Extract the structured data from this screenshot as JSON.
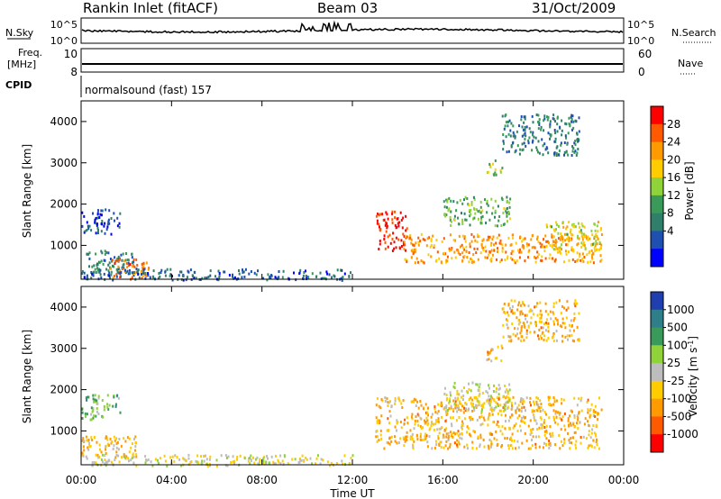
{
  "header": {
    "station": "Rankin Inlet (fitACF)",
    "beam": "Beam 03",
    "date": "31/Oct/2009"
  },
  "strips": {
    "nsky_label": "N.Sky",
    "nsky_ticks": [
      "10^5",
      "10^0"
    ],
    "nsearch_label": "N.Search",
    "nsearch_ticks": [
      "10^5",
      "10^0"
    ],
    "freq_label": "Freq.",
    "freq_unit": "[MHz]",
    "freq_ticks": [
      "10",
      "8"
    ],
    "nave_label": "Nave",
    "nave_ticks": [
      "60",
      "0"
    ],
    "cpid_label": "CPID",
    "cpid_value": "normalsound (fast) 157"
  },
  "chart_data": [
    {
      "type": "heatmap",
      "panel": "power",
      "quantity": "Power",
      "ylabel": "Slant Range [km]",
      "xlabel": "Time UT",
      "ylim": [
        180,
        4500
      ],
      "yticks": [
        "1000",
        "2000",
        "3000",
        "4000"
      ],
      "xlim": [
        "00:00",
        "24:00"
      ],
      "xticks": [
        "00:00",
        "04:00",
        "08:00",
        "12:00",
        "16:00",
        "20:00",
        "00:00"
      ],
      "colorbar": {
        "label": "Power [dB]",
        "ticks": [
          "28",
          "24",
          "20",
          "16",
          "12",
          "8",
          "4"
        ],
        "colors": [
          "#ff0000",
          "#ff5a00",
          "#ff9a00",
          "#ffcc00",
          "#8fd23a",
          "#3a9a5a",
          "#2f7f6a",
          "#1f4fb0",
          "#0000ff"
        ]
      },
      "echo_regions": [
        {
          "t0": 0.0,
          "t1": 1.7,
          "r0": 1300,
          "r1": 1900,
          "level_dB": 6
        },
        {
          "t0": 0.0,
          "t1": 2.5,
          "r0": 300,
          "r1": 900,
          "level_dB": 10
        },
        {
          "t0": 1.2,
          "t1": 3.0,
          "r0": 200,
          "r1": 700,
          "level_dB": 24
        },
        {
          "t0": 0.0,
          "t1": 12.0,
          "r0": 180,
          "r1": 450,
          "level_dB": 8
        },
        {
          "t0": 13.0,
          "t1": 14.4,
          "r0": 900,
          "r1": 1850,
          "level_dB": 28
        },
        {
          "t0": 14.2,
          "t1": 23.0,
          "r0": 600,
          "r1": 1300,
          "level_dB": 22
        },
        {
          "t0": 20.5,
          "t1": 23.0,
          "r0": 900,
          "r1": 1600,
          "level_dB": 18
        },
        {
          "t0": 16.0,
          "t1": 19.0,
          "r0": 1500,
          "r1": 2200,
          "level_dB": 14
        },
        {
          "t0": 17.9,
          "t1": 18.6,
          "r0": 2700,
          "r1": 3100,
          "level_dB": 16
        },
        {
          "t0": 18.6,
          "t1": 22.0,
          "r0": 3200,
          "r1": 4200,
          "level_dB": 10
        }
      ]
    },
    {
      "type": "heatmap",
      "panel": "velocity",
      "quantity": "Velocity",
      "ylabel": "Slant Range [km]",
      "xlabel": "Time UT",
      "ylim": [
        180,
        4500
      ],
      "yticks": [
        "1000",
        "2000",
        "3000",
        "4000"
      ],
      "xlim": [
        "00:00",
        "24:00"
      ],
      "xticks": [
        "00:00",
        "04:00",
        "08:00",
        "12:00",
        "16:00",
        "20:00",
        "00:00"
      ],
      "colorbar": {
        "label": "Velocity [m s^-1]",
        "ticks": [
          "1000",
          "500",
          "100",
          "25",
          "-25",
          "-100",
          "-500",
          "-1000"
        ],
        "colors": [
          "#1f3fb0",
          "#2f7f8a",
          "#3a9a5a",
          "#8fd23a",
          "#bdbdbd",
          "#ffcc00",
          "#ff9a00",
          "#ff5a00",
          "#ff0000"
        ]
      },
      "echo_regions": [
        {
          "t0": 0.0,
          "t1": 1.7,
          "r0": 1300,
          "r1": 1900,
          "level_ms": 300
        },
        {
          "t0": 0.0,
          "t1": 2.5,
          "r0": 300,
          "r1": 900,
          "level_ms": -300
        },
        {
          "t0": 0.0,
          "t1": 12.0,
          "r0": 180,
          "r1": 450,
          "level_ms": -50
        },
        {
          "t0": 13.0,
          "t1": 23.0,
          "r0": 600,
          "r1": 1850,
          "level_ms": -300
        },
        {
          "t0": 16.0,
          "t1": 19.0,
          "r0": 1500,
          "r1": 2200,
          "level_ms": 0
        },
        {
          "t0": 17.9,
          "t1": 18.6,
          "r0": 2700,
          "r1": 3100,
          "level_ms": -300
        },
        {
          "t0": 18.6,
          "t1": 22.0,
          "r0": 3200,
          "r1": 4200,
          "level_ms": -300
        }
      ]
    }
  ]
}
